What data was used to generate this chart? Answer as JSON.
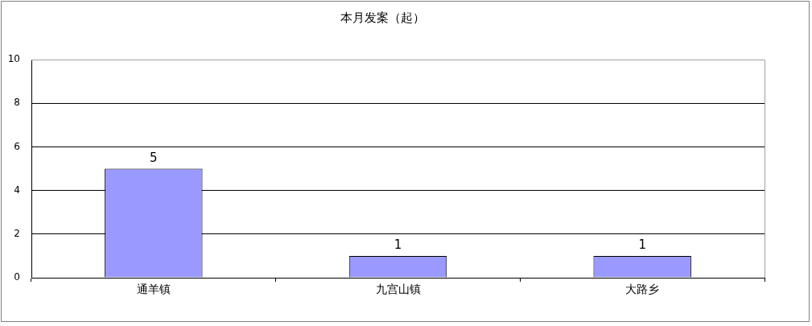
{
  "chart_data": {
    "type": "bar",
    "title": "本月发案（起）",
    "categories": [
      "通羊镇",
      "九宫山镇",
      "大路乡"
    ],
    "values": [
      5,
      1,
      1
    ],
    "color": "#9999ff",
    "ylim": [
      0,
      10
    ],
    "yticks": [
      0,
      2,
      4,
      6,
      8,
      10
    ],
    "grid": "y",
    "data_labels": true
  }
}
